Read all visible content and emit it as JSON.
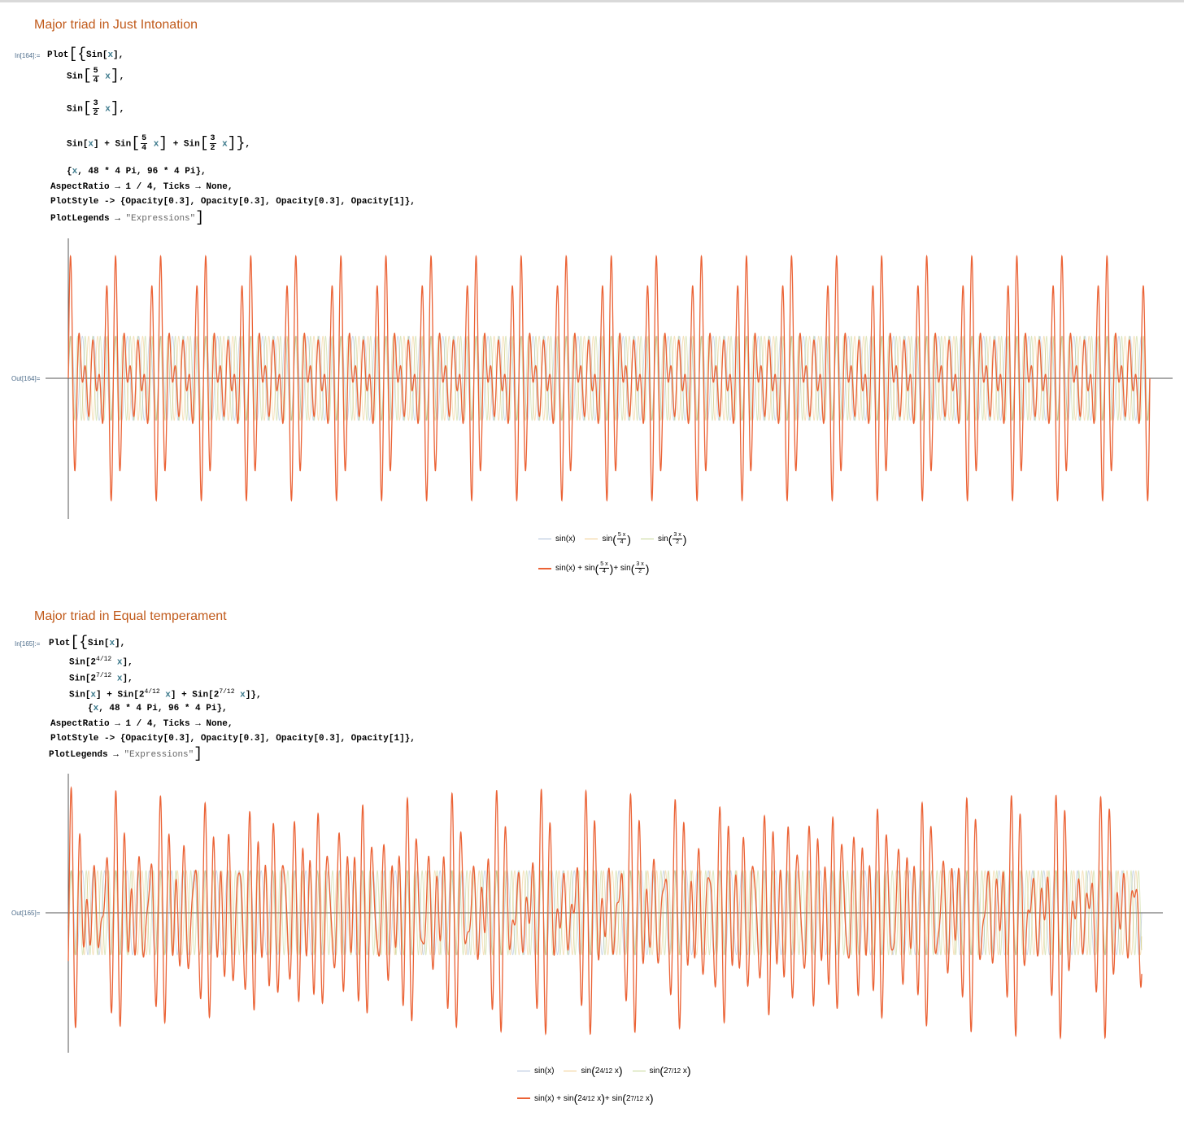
{
  "sections": [
    {
      "title": "Major triad in Just Intonation",
      "in_label": "In[164]:=",
      "out_label": "Out[164]=",
      "code": {
        "l1_plot": "Plot",
        "l1_sin": "Sin",
        "x": "x",
        "l2_sin": "Sin",
        "f54_num": "5",
        "f54_den": "4",
        "f32_num": "3",
        "f32_den": "2",
        "range": "48 * 4 Pi, 96 * 4 Pi",
        "aspect": "AspectRatio → 1 / 4, Ticks → None,",
        "style": "PlotStyle -> {Opacity[0.3], Opacity[0.3], Opacity[0.3], Opacity[1]},",
        "legends_key": "PlotLegends →",
        "legends_val": "\"Expressions\""
      },
      "legend": {
        "a": "sin(x)",
        "b_pre": "sin",
        "b_num": "5 x",
        "b_den": "4",
        "c_pre": "sin",
        "c_num": "3 x",
        "c_den": "2",
        "sum_1": "sin(x) + sin",
        "sum_2": "+ sin"
      }
    },
    {
      "title": "Major triad in Equal temperament",
      "in_label": "In[165]:=",
      "out_label": "Out[165]=",
      "code": {
        "exp4": "4/12",
        "exp7": "7/12",
        "base": "2",
        "range": "48 * 4 Pi, 96 * 4 Pi",
        "aspect": "AspectRatio → 1 / 4, Ticks → None,",
        "style": "PlotStyle -> {Opacity[0.3], Opacity[0.3], Opacity[0.3], Opacity[1]},",
        "legends_key": "PlotLegends →",
        "legends_val": "\"Expressions\""
      },
      "legend": {
        "a": "sin(x)",
        "b_pre": "sin",
        "b_base": "2",
        "b_exp": "4/12",
        "b_x": "x",
        "c_pre": "sin",
        "c_base": "2",
        "c_exp": "7/12",
        "c_x": "x",
        "sum_1": "sin(x) + sin",
        "sum_2": "+ sin"
      }
    }
  ],
  "chart_data": [
    {
      "type": "line",
      "title": "",
      "x_range": [
        "48*4*Pi",
        "96*4*Pi"
      ],
      "ylim": [
        -3,
        3
      ],
      "grid": false,
      "legend_position": "bottom-center",
      "series": [
        {
          "name": "sin(x)",
          "formula": "sin(x)",
          "color": "#5e81b5",
          "opacity": 0.3
        },
        {
          "name": "sin(5x/4)",
          "formula": "sin(5x/4)",
          "color": "#e19c24",
          "opacity": 0.3
        },
        {
          "name": "sin(3x/2)",
          "formula": "sin(3x/2)",
          "color": "#8fb032",
          "opacity": 0.3
        },
        {
          "name": "sin(x)+sin(5x/4)+sin(3x/2)",
          "formula": "sin(x)+sin(1.25x)+sin(1.5x)",
          "color": "#eb6235",
          "opacity": 1
        }
      ]
    },
    {
      "type": "line",
      "title": "",
      "x_range": [
        "48*4*Pi",
        "96*4*Pi"
      ],
      "ylim": [
        -3,
        3
      ],
      "grid": false,
      "legend_position": "bottom-center",
      "series": [
        {
          "name": "sin(x)",
          "formula": "sin(x)",
          "color": "#5e81b5",
          "opacity": 0.3
        },
        {
          "name": "sin(2^(4/12) x)",
          "formula": "sin(2^(4/12) x)",
          "color": "#e19c24",
          "opacity": 0.3
        },
        {
          "name": "sin(2^(7/12) x)",
          "formula": "sin(2^(7/12) x)",
          "color": "#8fb032",
          "opacity": 0.3
        },
        {
          "name": "sin(x)+sin(2^(4/12) x)+sin(2^(7/12) x)",
          "formula": "sum",
          "color": "#eb6235",
          "opacity": 1
        }
      ]
    }
  ]
}
